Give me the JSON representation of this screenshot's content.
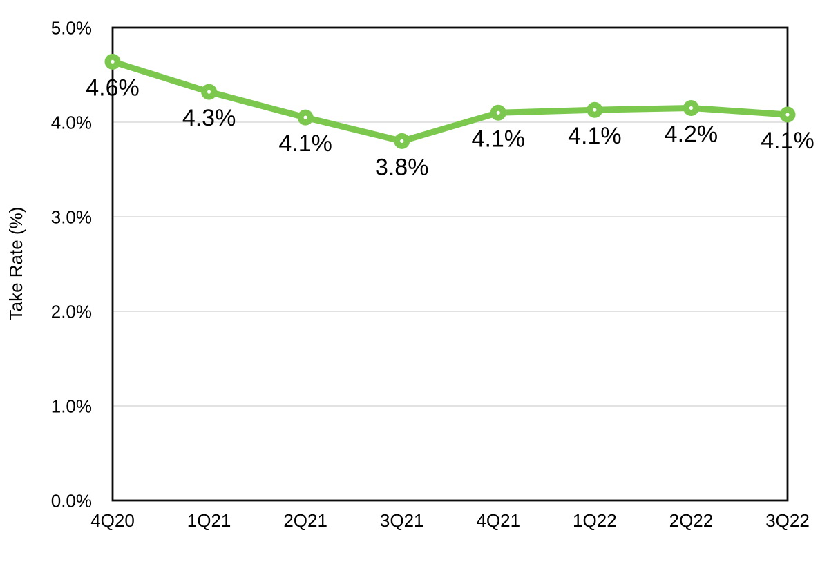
{
  "chart_data": {
    "type": "line",
    "title": "",
    "xlabel": "",
    "ylabel": "Take Rate (%)",
    "categories": [
      "4Q20",
      "1Q21",
      "2Q21",
      "3Q21",
      "4Q21",
      "1Q22",
      "2Q22",
      "3Q22"
    ],
    "series": [
      {
        "name": "Take Rate",
        "values": [
          4.6,
          4.3,
          4.1,
          3.8,
          4.1,
          4.1,
          4.2,
          4.1
        ],
        "point_labels": [
          "4.6%",
          "4.3%",
          "4.1%",
          "3.8%",
          "4.1%",
          "4.1%",
          "4.2%",
          "4.1%"
        ],
        "plot_values_estimated": [
          4.64,
          4.32,
          4.05,
          3.8,
          4.1,
          4.13,
          4.15,
          4.08
        ]
      }
    ],
    "ylim": [
      0,
      5
    ],
    "ytick_values": [
      0,
      1,
      2,
      3,
      4,
      5
    ],
    "ytick_labels": [
      "0.0%",
      "1.0%",
      "2.0%",
      "3.0%",
      "4.0%",
      "5.0%"
    ],
    "grid": "horizontal-only",
    "legend": "none",
    "colors": {
      "line": "#7CC84F",
      "marker_fill": "#7CC84F",
      "marker_center_dot": "#FFFFFF",
      "gridline": "#D9D9D9",
      "axis_border": "#0A0A0A",
      "text": "#000000",
      "background": "#FFFFFF"
    }
  }
}
